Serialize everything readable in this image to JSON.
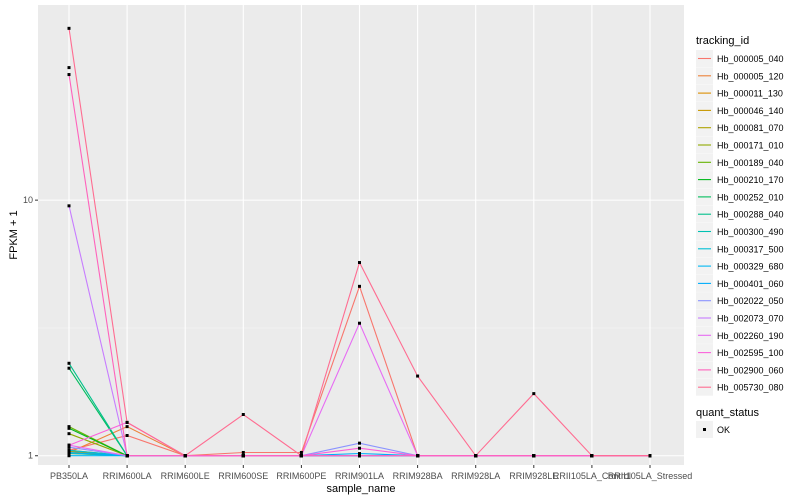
{
  "chart_data": {
    "type": "line",
    "xlabel": "sample_name",
    "ylabel": "FPKM + 1",
    "y_scale": "log10",
    "y_ticks": [
      1,
      10
    ],
    "y_tick_labels": [
      "1",
      "10"
    ],
    "ylim": [
      0.92,
      58
    ],
    "grid": true,
    "legend_position": "right",
    "categories": [
      "PB350LA",
      "RRIM600LA",
      "RRIM600LE",
      "RRIM600SE",
      "RRIM600PE",
      "RRIM901LA",
      "RRIM928BA",
      "RRIM928LA",
      "RRIM928LE",
      "RRII105LA_Control",
      "RRII105LA_Stressed"
    ],
    "category_labels": [
      "PB350LA",
      "RRIM600LA",
      "RRIM600LE",
      "RRIM600SE",
      "RRIM600PE",
      "RRIM901LA",
      "RRIM928BA",
      "RRIM928LA",
      "RRIM928LE",
      "RRII105LA_Control",
      "RRII105LA_Stressed"
    ],
    "legend_title": "tracking_id",
    "legend2_title": "quant_status",
    "legend2_items": [
      {
        "label": "OK",
        "shape": "square",
        "color": "#000000"
      }
    ],
    "series": [
      {
        "name": "Hb_000005_040",
        "color": "#F8766D",
        "values": [
          1.05,
          1.2,
          1.0,
          1.03,
          1.03,
          4.6,
          1.0,
          1.0,
          1.0,
          1.0,
          1.0
        ]
      },
      {
        "name": "Hb_000005_120",
        "color": "#EC8239",
        "values": [
          1.03,
          1.3,
          1.0,
          1.0,
          1.0,
          1.0,
          1.0,
          1.0,
          1.0,
          1.0,
          1.0
        ]
      },
      {
        "name": "Hb_000011_130",
        "color": "#DB8E00",
        "values": [
          1.02,
          1.0,
          1.0,
          1.0,
          1.0,
          1.0,
          1.0,
          1.0,
          1.0,
          1.0,
          1.0
        ]
      },
      {
        "name": "Hb_000046_140",
        "color": "#C79800",
        "values": [
          1.04,
          1.0,
          1.0,
          1.0,
          1.0,
          1.0,
          1.0,
          1.0,
          1.0,
          1.0,
          1.0
        ]
      },
      {
        "name": "Hb_000081_070",
        "color": "#AEA200",
        "values": [
          1.05,
          1.0,
          1.0,
          1.0,
          1.0,
          1.0,
          1.0,
          1.0,
          1.0,
          1.0,
          1.0
        ]
      },
      {
        "name": "Hb_000171_010",
        "color": "#8FAA00",
        "values": [
          1.22,
          1.0,
          1.0,
          1.0,
          1.0,
          1.0,
          1.0,
          1.0,
          1.0,
          1.0,
          1.0
        ]
      },
      {
        "name": "Hb_000189_040",
        "color": "#64B200",
        "values": [
          1.3,
          1.0,
          1.0,
          1.0,
          1.0,
          1.0,
          1.0,
          1.0,
          1.0,
          1.0,
          1.0
        ]
      },
      {
        "name": "Hb_000210_170",
        "color": "#00B81B",
        "values": [
          1.28,
          1.0,
          1.0,
          1.0,
          1.0,
          1.0,
          1.0,
          1.0,
          1.0,
          1.0,
          1.0
        ]
      },
      {
        "name": "Hb_000252_010",
        "color": "#00BD5C",
        "values": [
          2.2,
          1.0,
          1.0,
          1.0,
          1.0,
          1.0,
          1.0,
          1.0,
          1.0,
          1.0,
          1.0
        ]
      },
      {
        "name": "Hb_000288_040",
        "color": "#00C08B",
        "values": [
          2.3,
          1.0,
          1.0,
          1.0,
          1.0,
          1.0,
          1.0,
          1.0,
          1.0,
          1.0,
          1.0
        ]
      },
      {
        "name": "Hb_000300_490",
        "color": "#00C1B2",
        "values": [
          1.02,
          1.0,
          1.0,
          1.0,
          1.0,
          1.0,
          1.0,
          1.0,
          1.0,
          1.0,
          1.0
        ]
      },
      {
        "name": "Hb_000317_500",
        "color": "#00BFD4",
        "values": [
          1.05,
          1.0,
          1.0,
          1.0,
          1.0,
          1.0,
          1.0,
          1.0,
          1.0,
          1.0,
          1.0
        ]
      },
      {
        "name": "Hb_000329_680",
        "color": "#00B8F3",
        "values": [
          1.0,
          1.0,
          1.0,
          1.0,
          1.0,
          1.0,
          1.0,
          1.0,
          1.0,
          1.0,
          1.0
        ]
      },
      {
        "name": "Hb_000401_060",
        "color": "#00ADFA",
        "values": [
          1.03,
          1.0,
          1.0,
          1.0,
          1.0,
          1.02,
          1.0,
          1.0,
          1.0,
          1.0,
          1.0
        ]
      },
      {
        "name": "Hb_002022_050",
        "color": "#8B93FF",
        "values": [
          1.08,
          1.0,
          1.0,
          1.0,
          1.0,
          1.12,
          1.0,
          1.0,
          1.0,
          1.0,
          1.0
        ]
      },
      {
        "name": "Hb_002073_070",
        "color": "#C77CFF",
        "values": [
          9.5,
          1.0,
          1.0,
          1.0,
          1.0,
          1.0,
          1.0,
          1.0,
          1.0,
          1.0,
          1.0
        ]
      },
      {
        "name": "Hb_002260_190",
        "color": "#E76BF3",
        "values": [
          1.1,
          1.0,
          1.0,
          1.0,
          1.0,
          3.3,
          1.0,
          1.0,
          1.0,
          1.0,
          1.0
        ]
      },
      {
        "name": "Hb_002595_100",
        "color": "#FA62DB",
        "values": [
          1.1,
          1.35,
          1.0,
          1.0,
          1.0,
          1.07,
          1.0,
          1.0,
          1.0,
          1.0,
          1.0
        ]
      },
      {
        "name": "Hb_002900_060",
        "color": "#FF62BC",
        "values": [
          31.0,
          1.0,
          1.0,
          1.0,
          1.0,
          1.0,
          1.0,
          1.0,
          1.0,
          1.0,
          1.0
        ]
      },
      {
        "name": "Hb_005730_080",
        "color": "#FF6C91",
        "values": [
          47.0,
          1.35,
          1.0,
          1.45,
          1.0,
          5.7,
          2.05,
          1.0,
          1.75,
          1.0,
          1.0
        ]
      }
    ],
    "extra_points": [
      {
        "category": "PB350LA",
        "value": 33.0
      }
    ]
  }
}
